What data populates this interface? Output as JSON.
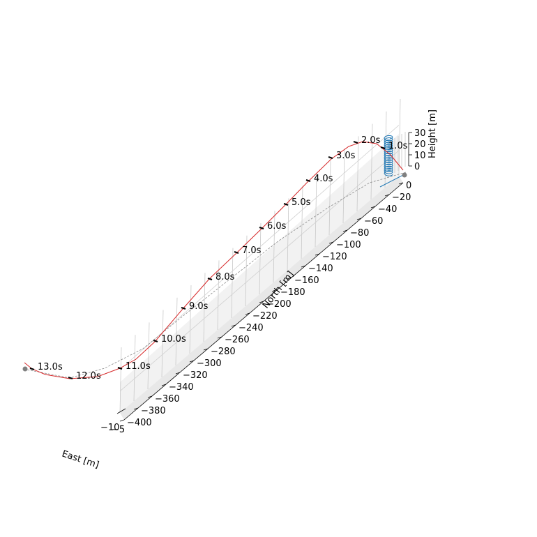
{
  "chart_data": {
    "type": "line",
    "projection": "3d",
    "axes": {
      "x": {
        "label": "East [m]",
        "tick_labels": [
          "−10",
          "−5"
        ]
      },
      "y": {
        "label": "North [m]",
        "ticks": [
          0,
          -20,
          -40,
          -60,
          -80,
          -100,
          -120,
          -140,
          -160,
          -180,
          -200,
          -220,
          -240,
          -260,
          -280,
          -300,
          -320,
          -340,
          -360,
          -380,
          -400
        ],
        "tick_labels": [
          "0",
          "−20",
          "−40",
          "−60",
          "−80",
          "−100",
          "−120",
          "−140",
          "−160",
          "−180",
          "−200",
          "−220",
          "−240",
          "−260",
          "−280",
          "−300",
          "−320",
          "−340",
          "−360",
          "−380",
          "−400"
        ],
        "range": [
          0,
          -400
        ]
      },
      "z": {
        "label": "Height [m]",
        "tick_labels": [
          "0",
          "10",
          "20",
          "30"
        ],
        "range": [
          0,
          30
        ]
      }
    },
    "grid": true,
    "series": [
      {
        "name": "",
        "style": "solid",
        "color": "#d62728"
      },
      {
        "name": "",
        "style": "dashed",
        "color": "#888888"
      },
      {
        "name": "",
        "style": "solid",
        "color": "#1f77b4"
      }
    ],
    "time_markers": [
      "1.0s",
      "2.0s",
      "3.0s",
      "4.0s",
      "5.0s",
      "6.0s",
      "7.0s",
      "8.0s",
      "9.0s",
      "10.0s",
      "11.0s",
      "12.0s",
      "13.0s"
    ],
    "colors": {
      "trajectory": "#d62728",
      "ground_track": "#888888",
      "helix": "#1f77b4",
      "endpoint": "#808080",
      "marker": "#000000"
    }
  }
}
